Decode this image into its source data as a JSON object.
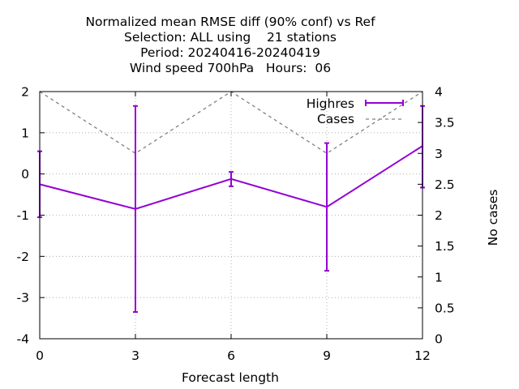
{
  "chart_data": {
    "type": "line",
    "title_lines": [
      "Normalized mean RMSE diff (90% conf) vs Ref",
      "Selection: ALL using    21 stations",
      "Period: 20240416-20240419",
      "Wind speed 700hPa   Hours:  06"
    ],
    "xlabel": "Forecast length",
    "ylabel": "",
    "y2label": "No cases",
    "xlim": [
      0,
      12
    ],
    "ylim": [
      -4,
      2
    ],
    "y2lim": [
      0,
      4
    ],
    "xticks": [
      0,
      3,
      6,
      9,
      12
    ],
    "yticks": [
      -4,
      -3,
      -2,
      -1,
      0,
      1,
      2
    ],
    "y2ticks": [
      0,
      0.5,
      1,
      1.5,
      2,
      2.5,
      3,
      3.5,
      4
    ],
    "grid": true,
    "legend_position": "top-right",
    "series": [
      {
        "name": "Highres",
        "color": "#9400d3",
        "axis": "y",
        "x": [
          0,
          3,
          6,
          9,
          12
        ],
        "y": [
          -0.25,
          -0.85,
          -0.12,
          -0.8,
          0.68
        ],
        "err_low": [
          -1.05,
          -3.35,
          -0.3,
          -2.35,
          -0.33
        ],
        "err_high": [
          0.55,
          1.65,
          0.05,
          0.75,
          1.65
        ]
      },
      {
        "name": "Cases",
        "color": "#808080",
        "axis": "y2",
        "dashed": true,
        "x": [
          0,
          3,
          6,
          9,
          12
        ],
        "y": [
          4,
          3,
          4,
          3,
          4
        ]
      }
    ]
  }
}
